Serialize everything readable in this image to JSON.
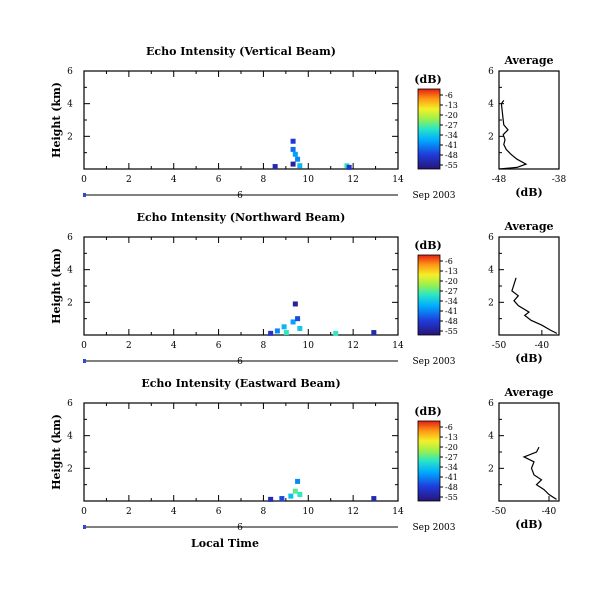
{
  "chart_data": [
    {
      "type": "heatmap",
      "title": "Echo Intensity (Vertical Beam)",
      "ylabel": "Height (km)",
      "xlabel": "",
      "x_ticks": [
        "0",
        "2",
        "4",
        "6",
        "8",
        "10",
        "12",
        "14"
      ],
      "y_ticks": [
        "2",
        "4",
        "6"
      ],
      "xlim": [
        0,
        14
      ],
      "ylim": [
        0,
        6
      ],
      "date_label": "Sep 2003",
      "day_label": "6",
      "colorbar": {
        "label": "(dB)",
        "ticks": [
          "-6",
          "-13",
          "-20",
          "-27",
          "-34",
          "-41",
          "-48",
          "-55"
        ]
      },
      "cells": [
        {
          "x": 8.5,
          "y": 0.15,
          "value": -50
        },
        {
          "x": 9.3,
          "y": 1.7,
          "value": -47
        },
        {
          "x": 9.3,
          "y": 1.2,
          "value": -42
        },
        {
          "x": 9.4,
          "y": 0.9,
          "value": -38
        },
        {
          "x": 9.5,
          "y": 0.6,
          "value": -40
        },
        {
          "x": 9.3,
          "y": 0.3,
          "value": -52
        },
        {
          "x": 9.6,
          "y": 0.2,
          "value": -36
        },
        {
          "x": 11.7,
          "y": 0.2,
          "value": -30
        },
        {
          "x": 11.8,
          "y": 0.1,
          "value": -48
        }
      ],
      "average": {
        "title": "Average",
        "xlabel": "(dB)",
        "xlim": [
          -48,
          -38
        ],
        "x_ticks": [
          "-48",
          "-38"
        ],
        "y_ticks": [
          "2",
          "4",
          "6"
        ],
        "ylim": [
          0,
          6
        ],
        "profile": [
          {
            "x": -48.0,
            "y": 0.0
          },
          {
            "x": -45.0,
            "y": 0.1
          },
          {
            "x": -43.5,
            "y": 0.3
          },
          {
            "x": -45.0,
            "y": 0.6
          },
          {
            "x": -46.0,
            "y": 0.9
          },
          {
            "x": -46.8,
            "y": 1.2
          },
          {
            "x": -47.2,
            "y": 1.5
          },
          {
            "x": -47.0,
            "y": 1.8
          },
          {
            "x": -47.3,
            "y": 2.1
          },
          {
            "x": -46.5,
            "y": 2.4
          },
          {
            "x": -47.2,
            "y": 2.7
          },
          {
            "x": -47.3,
            "y": 3.0
          },
          {
            "x": -47.6,
            "y": 4.0
          },
          {
            "x": -47.2,
            "y": 4.2
          }
        ]
      }
    },
    {
      "type": "heatmap",
      "title": "Echo Intensity (Northward Beam)",
      "ylabel": "Height (km)",
      "xlabel": "",
      "x_ticks": [
        "0",
        "2",
        "4",
        "6",
        "8",
        "10",
        "12",
        "14"
      ],
      "y_ticks": [
        "2",
        "4",
        "6"
      ],
      "xlim": [
        0,
        14
      ],
      "ylim": [
        0,
        6
      ],
      "date_label": "Sep 2003",
      "day_label": "6",
      "colorbar": {
        "label": "(dB)",
        "ticks": [
          "-6",
          "-13",
          "-20",
          "-27",
          "-34",
          "-41",
          "-48",
          "-55"
        ]
      },
      "cells": [
        {
          "x": 8.3,
          "y": 0.1,
          "value": -48
        },
        {
          "x": 8.6,
          "y": 0.25,
          "value": -40
        },
        {
          "x": 8.9,
          "y": 0.5,
          "value": -36
        },
        {
          "x": 9.0,
          "y": 0.15,
          "value": -30
        },
        {
          "x": 9.3,
          "y": 0.8,
          "value": -38
        },
        {
          "x": 9.4,
          "y": 1.9,
          "value": -52
        },
        {
          "x": 9.5,
          "y": 1.0,
          "value": -45
        },
        {
          "x": 9.6,
          "y": 0.4,
          "value": -34
        },
        {
          "x": 11.2,
          "y": 0.1,
          "value": -30
        },
        {
          "x": 12.9,
          "y": 0.15,
          "value": -50
        }
      ],
      "average": {
        "title": "Average",
        "xlabel": "(dB)",
        "xlim": [
          -50,
          -36
        ],
        "x_ticks": [
          "-50",
          "-40"
        ],
        "y_ticks": [
          "2",
          "4",
          "6"
        ],
        "ylim": [
          0,
          6
        ],
        "profile": [
          {
            "x": -36.5,
            "y": 0.1
          },
          {
            "x": -38.0,
            "y": 0.3
          },
          {
            "x": -40.0,
            "y": 0.6
          },
          {
            "x": -42.5,
            "y": 0.9
          },
          {
            "x": -44.0,
            "y": 1.2
          },
          {
            "x": -43.0,
            "y": 1.4
          },
          {
            "x": -45.5,
            "y": 1.8
          },
          {
            "x": -46.5,
            "y": 2.1
          },
          {
            "x": -45.5,
            "y": 2.4
          },
          {
            "x": -47.0,
            "y": 2.7
          },
          {
            "x": -46.0,
            "y": 3.5
          }
        ]
      }
    },
    {
      "type": "heatmap",
      "title": "Echo Intensity (Eastward Beam)",
      "ylabel": "Height (km)",
      "xlabel": "Local Time",
      "x_ticks": [
        "0",
        "2",
        "4",
        "6",
        "8",
        "10",
        "12",
        "14"
      ],
      "y_ticks": [
        "2",
        "4",
        "6"
      ],
      "xlim": [
        0,
        14
      ],
      "ylim": [
        0,
        6
      ],
      "date_label": "Sep 2003",
      "day_label": "6",
      "colorbar": {
        "label": "(dB)",
        "ticks": [
          "-6",
          "-13",
          "-20",
          "-27",
          "-34",
          "-41",
          "-48",
          "-55"
        ]
      },
      "cells": [
        {
          "x": 8.3,
          "y": 0.1,
          "value": -50
        },
        {
          "x": 8.8,
          "y": 0.15,
          "value": -45
        },
        {
          "x": 9.2,
          "y": 0.3,
          "value": -35
        },
        {
          "x": 9.4,
          "y": 0.6,
          "value": -28
        },
        {
          "x": 9.5,
          "y": 1.2,
          "value": -40
        },
        {
          "x": 9.6,
          "y": 0.4,
          "value": -30
        },
        {
          "x": 12.9,
          "y": 0.15,
          "value": -50
        }
      ],
      "average": {
        "title": "Average",
        "xlabel": "(dB)",
        "xlim": [
          -50,
          -38
        ],
        "x_ticks": [
          "-50",
          "-40"
        ],
        "y_ticks": [
          "2",
          "4",
          "6"
        ],
        "ylim": [
          0,
          6
        ],
        "profile": [
          {
            "x": -38.5,
            "y": 0.1
          },
          {
            "x": -40.0,
            "y": 0.4
          },
          {
            "x": -41.0,
            "y": 0.7
          },
          {
            "x": -42.5,
            "y": 1.0
          },
          {
            "x": -41.5,
            "y": 1.3
          },
          {
            "x": -43.0,
            "y": 1.6
          },
          {
            "x": -43.5,
            "y": 2.0
          },
          {
            "x": -43.0,
            "y": 2.4
          },
          {
            "x": -45.0,
            "y": 2.7
          },
          {
            "x": -42.5,
            "y": 3.0
          },
          {
            "x": -42.0,
            "y": 3.3
          }
        ]
      }
    }
  ]
}
